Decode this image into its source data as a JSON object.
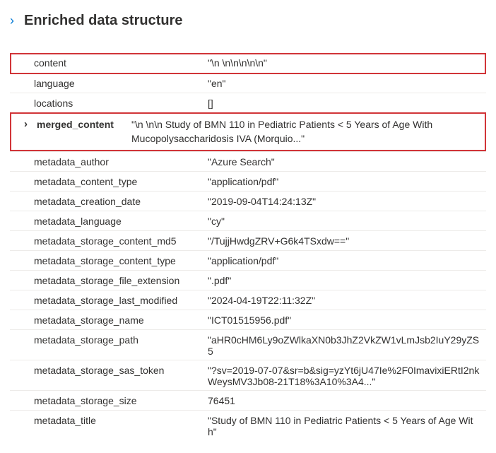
{
  "header": {
    "title": "Enriched data structure",
    "chevron": "›"
  },
  "rows": [
    {
      "key": "content",
      "value": "\"\\n \\n\\n\\n\\n\\n\"",
      "boxed": true
    },
    {
      "key": "language",
      "value": "\"en\""
    },
    {
      "key": "locations",
      "value": "[]"
    }
  ],
  "merged": {
    "key": "merged_content",
    "value": "\"\\n \\n\\n Study of BMN 110 in Pediatric Patients < 5 Years of Age With Mucopolysaccharidosis IVA (Morquio...\""
  },
  "rows2": [
    {
      "key": "metadata_author",
      "value": "\"Azure Search\""
    },
    {
      "key": "metadata_content_type",
      "value": "\"application/pdf\""
    },
    {
      "key": "metadata_creation_date",
      "value": "\"2019-09-04T14:24:13Z\""
    },
    {
      "key": "metadata_language",
      "value": "\"cy\""
    },
    {
      "key": "metadata_storage_content_md5",
      "value": "\"/TujjHwdgZRV+G6k4TSxdw==\""
    },
    {
      "key": "metadata_storage_content_type",
      "value": "\"application/pdf\""
    },
    {
      "key": "metadata_storage_file_extension",
      "value": "\".pdf\""
    },
    {
      "key": "metadata_storage_last_modified",
      "value": "\"2024-04-19T22:11:32Z\""
    },
    {
      "key": "metadata_storage_name",
      "value": "\"ICT01515956.pdf\""
    },
    {
      "key": "metadata_storage_path",
      "value": "\"aHR0cHM6Ly9oZWlkaXN0b3JhZ2VkZW1vLmJsb2IuY29yZS5"
    },
    {
      "key": "metadata_storage_sas_token",
      "value": "\"?sv=2019-07-07&sr=b&sig=yzYt6jU47Ie%2F0ImavixiERtI2nkWeysMV3Jb08-21T18%3A10%3A4...\""
    },
    {
      "key": "metadata_storage_size",
      "value": "76451"
    },
    {
      "key": "metadata_title",
      "value": "\"Study of BMN 110 in Pediatric Patients < 5 Years of Age With\""
    }
  ]
}
